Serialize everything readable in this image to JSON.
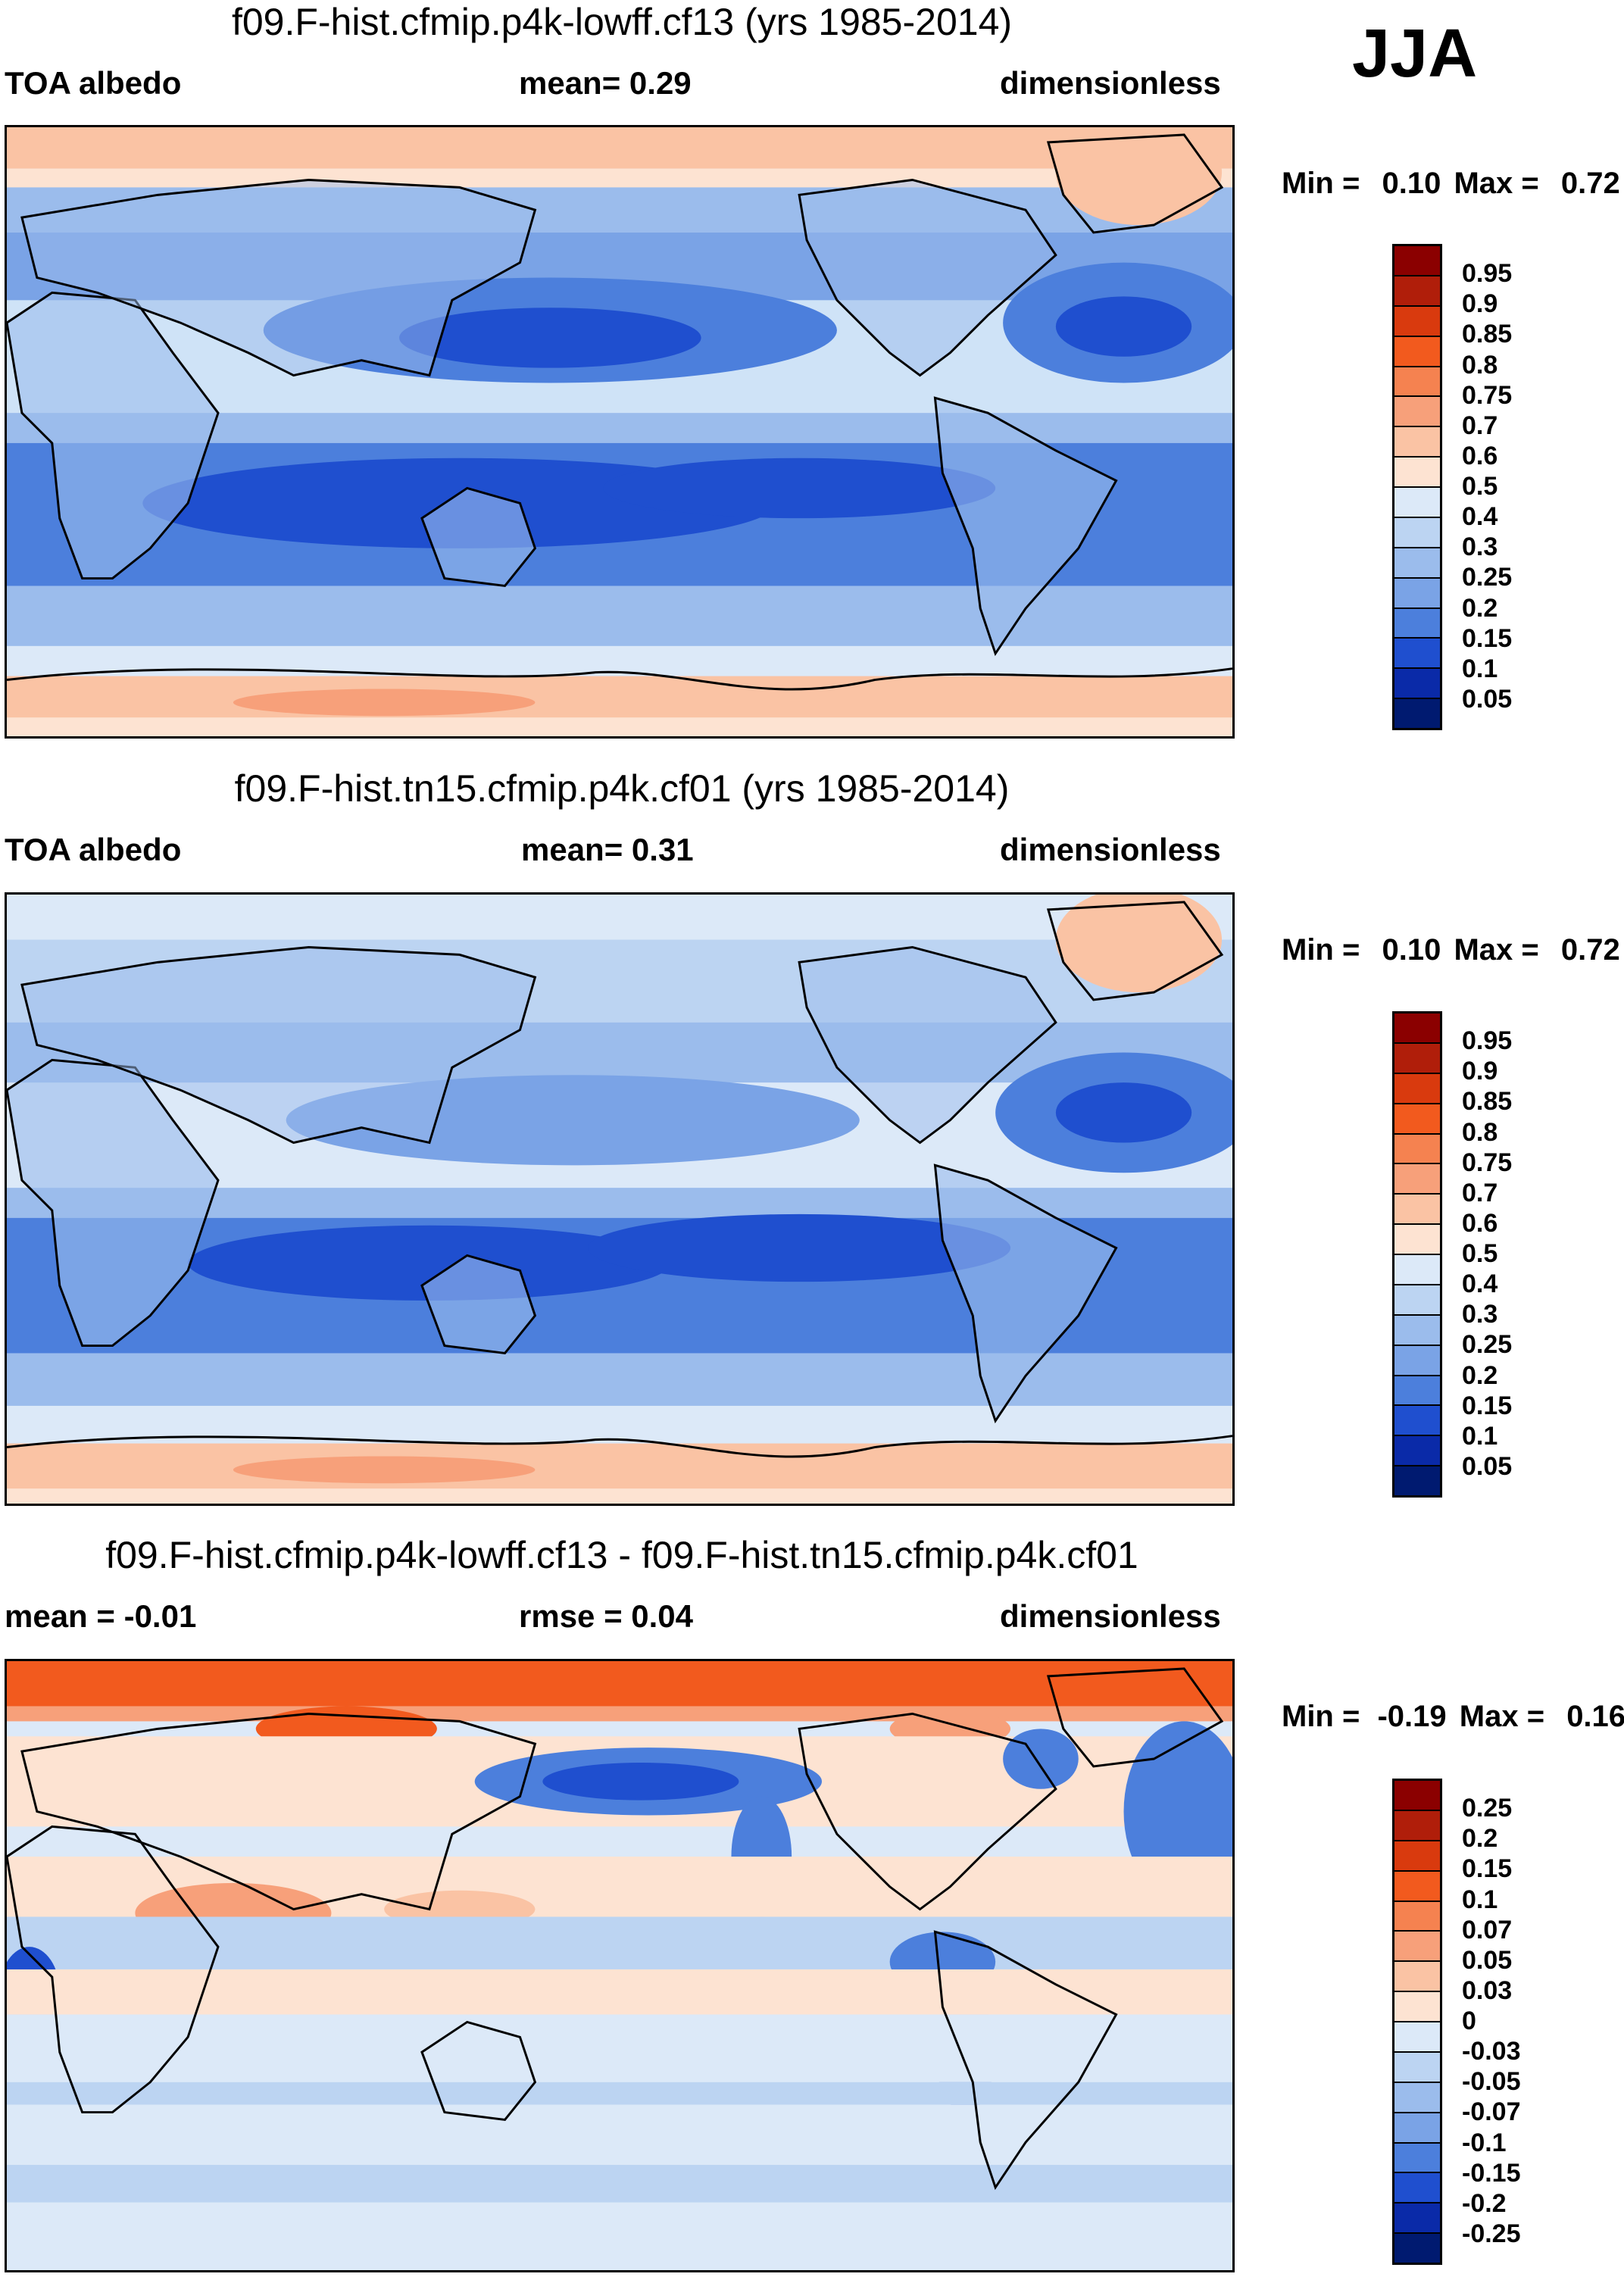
{
  "season": "JJA",
  "panels": [
    {
      "title": "f09.F-hist.cfmip.p4k-lowff.cf13 (yrs 1985-2014)",
      "left_label": "TOA albedo",
      "center_label": "mean=   0.29",
      "right_label": "dimensionless",
      "min_label": "Min =",
      "min_value": "0.10",
      "max_label": "Max =",
      "max_value": "0.72",
      "colorbar_labels": [
        "0.95",
        "0.9",
        "0.85",
        "0.8",
        "0.75",
        "0.7",
        "0.6",
        "0.5",
        "0.4",
        "0.3",
        "0.25",
        "0.2",
        "0.15",
        "0.1",
        "0.05"
      ]
    },
    {
      "title": "f09.F-hist.tn15.cfmip.p4k.cf01 (yrs 1985-2014)",
      "left_label": "TOA albedo",
      "center_label": "mean=   0.31",
      "right_label": "dimensionless",
      "min_label": "Min =",
      "min_value": "0.10",
      "max_label": "Max =",
      "max_value": "0.72",
      "colorbar_labels": [
        "0.95",
        "0.9",
        "0.85",
        "0.8",
        "0.75",
        "0.7",
        "0.6",
        "0.5",
        "0.4",
        "0.3",
        "0.25",
        "0.2",
        "0.15",
        "0.1",
        "0.05"
      ]
    },
    {
      "title": "f09.F-hist.cfmip.p4k-lowff.cf13 - f09.F-hist.tn15.cfmip.p4k.cf01",
      "left_label": "mean =  -0.01",
      "center_label": "rmse =   0.04",
      "right_label": "dimensionless",
      "min_label": "Min =",
      "min_value": "-0.19",
      "max_label": "Max =",
      "max_value": "0.16",
      "colorbar_labels": [
        "0.25",
        "0.2",
        "0.15",
        "0.1",
        "0.07",
        "0.05",
        "0.03",
        "0",
        "-0.03",
        "-0.05",
        "-0.07",
        "-0.1",
        "-0.15",
        "-0.2",
        "-0.25"
      ]
    }
  ],
  "colors": {
    "colorbar": [
      "#8b0000",
      "#b01e0a",
      "#d93a0e",
      "#f25a1e",
      "#f58250",
      "#f7a07a",
      "#fac3a4",
      "#fde3d2",
      "#dce9f8",
      "#bcd4f2",
      "#9bbcec",
      "#7aa3e6",
      "#4c7fdc",
      "#1f4fcf",
      "#0a2aa8",
      "#001a70"
    ],
    "map_ocean_main": "#cfe3f7",
    "map_ocean_blue": "#3f6fe0",
    "map_pole_warm": "#fac3a4",
    "diff_arctic": "#f25a1e"
  }
}
